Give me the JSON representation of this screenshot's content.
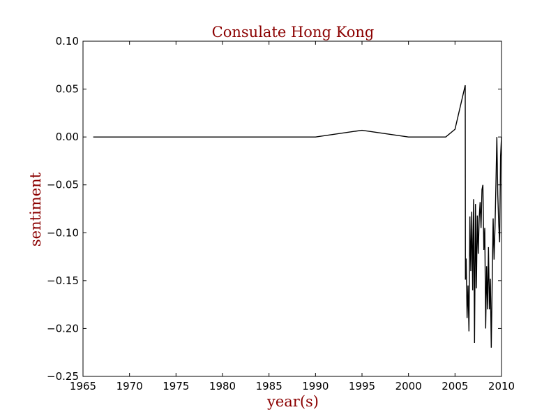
{
  "colors": {
    "title": "#8b0000",
    "line": "#000000",
    "background": "#ffffff"
  },
  "chart_data": {
    "type": "line",
    "title": "Consulate Hong Kong",
    "xlabel": "year(s)",
    "ylabel": "sentiment",
    "xlim": [
      1965,
      2010
    ],
    "ylim": [
      -0.25,
      0.1
    ],
    "grid": false,
    "x_ticks": [
      1965,
      1970,
      1975,
      1980,
      1985,
      1990,
      1995,
      2000,
      2005,
      2010
    ],
    "x_tick_labels": [
      "1965",
      "1970",
      "1975",
      "1980",
      "1985",
      "1990",
      "1995",
      "2000",
      "2005",
      "2010"
    ],
    "y_ticks": [
      0.1,
      0.05,
      0.0,
      -0.05,
      -0.1,
      -0.15,
      -0.2,
      -0.25
    ],
    "y_tick_labels": [
      "0.10",
      "0.05",
      "0.00",
      "−0.05",
      "−0.10",
      "−0.15",
      "−0.20",
      "−0.25"
    ],
    "series": [
      {
        "x": [
          1966.1,
          1990.0,
          1995.0,
          2000.0,
          2004.0,
          2005.0,
          2006.1,
          2006.12,
          2006.2,
          2006.3,
          2006.4,
          2006.5,
          2006.6,
          2006.7,
          2006.8,
          2006.9,
          2007.0,
          2007.1,
          2007.2,
          2007.3,
          2007.4,
          2007.5,
          2007.6,
          2007.7,
          2007.8,
          2007.9,
          2008.0,
          2008.1,
          2008.2,
          2008.3,
          2008.4,
          2008.5,
          2008.6,
          2008.7,
          2008.8,
          2008.9,
          2009.0,
          2009.1,
          2009.2,
          2009.3,
          2009.4,
          2009.5,
          2009.6,
          2009.7,
          2009.8,
          2009.9,
          2010.0
        ],
        "y": [
          0.0,
          0.0,
          0.007,
          0.0,
          0.0,
          0.008,
          0.054,
          -0.149,
          -0.127,
          -0.189,
          -0.155,
          -0.203,
          -0.083,
          -0.14,
          -0.078,
          -0.16,
          -0.065,
          -0.215,
          -0.07,
          -0.158,
          -0.082,
          -0.122,
          -0.085,
          -0.068,
          -0.095,
          -0.055,
          -0.05,
          -0.118,
          -0.095,
          -0.2,
          -0.135,
          -0.18,
          -0.115,
          -0.18,
          -0.148,
          -0.22,
          -0.15,
          -0.085,
          -0.128,
          -0.095,
          -0.05,
          0.0,
          -0.06,
          -0.09,
          -0.11,
          -0.02,
          0.0
        ]
      }
    ]
  }
}
